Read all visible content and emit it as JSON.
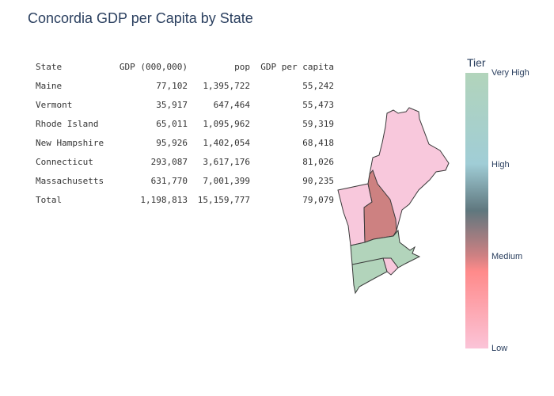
{
  "title": "Concordia GDP per Capita by State",
  "table": {
    "headers": {
      "state": "State",
      "gdp": "GDP (000,000)",
      "pop": "pop",
      "gdp_per_capita": "GDP per capita"
    },
    "rows": [
      {
        "state": "Maine",
        "gdp": "77,102",
        "pop": "1,395,722",
        "gdp_per_capita": "55,242"
      },
      {
        "state": "Vermont",
        "gdp": "35,917",
        "pop": "647,464",
        "gdp_per_capita": "55,473"
      },
      {
        "state": "Rhode Island",
        "gdp": "65,011",
        "pop": "1,095,962",
        "gdp_per_capita": "59,319"
      },
      {
        "state": "New Hampshire",
        "gdp": "95,926",
        "pop": "1,402,054",
        "gdp_per_capita": "68,418"
      },
      {
        "state": "Connecticut",
        "gdp": "293,087",
        "pop": "3,617,176",
        "gdp_per_capita": "81,026"
      },
      {
        "state": "Massachusetts",
        "gdp": "631,770",
        "pop": "7,001,399",
        "gdp_per_capita": "90,235"
      },
      {
        "state": "Total",
        "gdp": "1,198,813",
        "pop": "15,159,777",
        "gdp_per_capita": "79,079"
      }
    ]
  },
  "map": {
    "regions": [
      {
        "id": "maine",
        "tier": "Low",
        "color": "#f8c8dc"
      },
      {
        "id": "vermont",
        "tier": "Low",
        "color": "#f8c8dc"
      },
      {
        "id": "rhode-island",
        "tier": "Low",
        "color": "#f8c8dc"
      },
      {
        "id": "new-hampshire",
        "tier": "Medium",
        "color": "#cd8181"
      },
      {
        "id": "connecticut",
        "tier": "Very High",
        "color": "#b2d4bb"
      },
      {
        "id": "massachusetts",
        "tier": "Very High",
        "color": "#b2d4bb"
      }
    ]
  },
  "legend": {
    "title": "Tier",
    "ticks": [
      "Very High",
      "High",
      "Medium",
      "Low"
    ],
    "colors": [
      "#b2d4bb",
      "#a0cdd6",
      "#5f777e",
      "#cc8082",
      "#ff8a8a",
      "#fbc4d8"
    ]
  }
}
